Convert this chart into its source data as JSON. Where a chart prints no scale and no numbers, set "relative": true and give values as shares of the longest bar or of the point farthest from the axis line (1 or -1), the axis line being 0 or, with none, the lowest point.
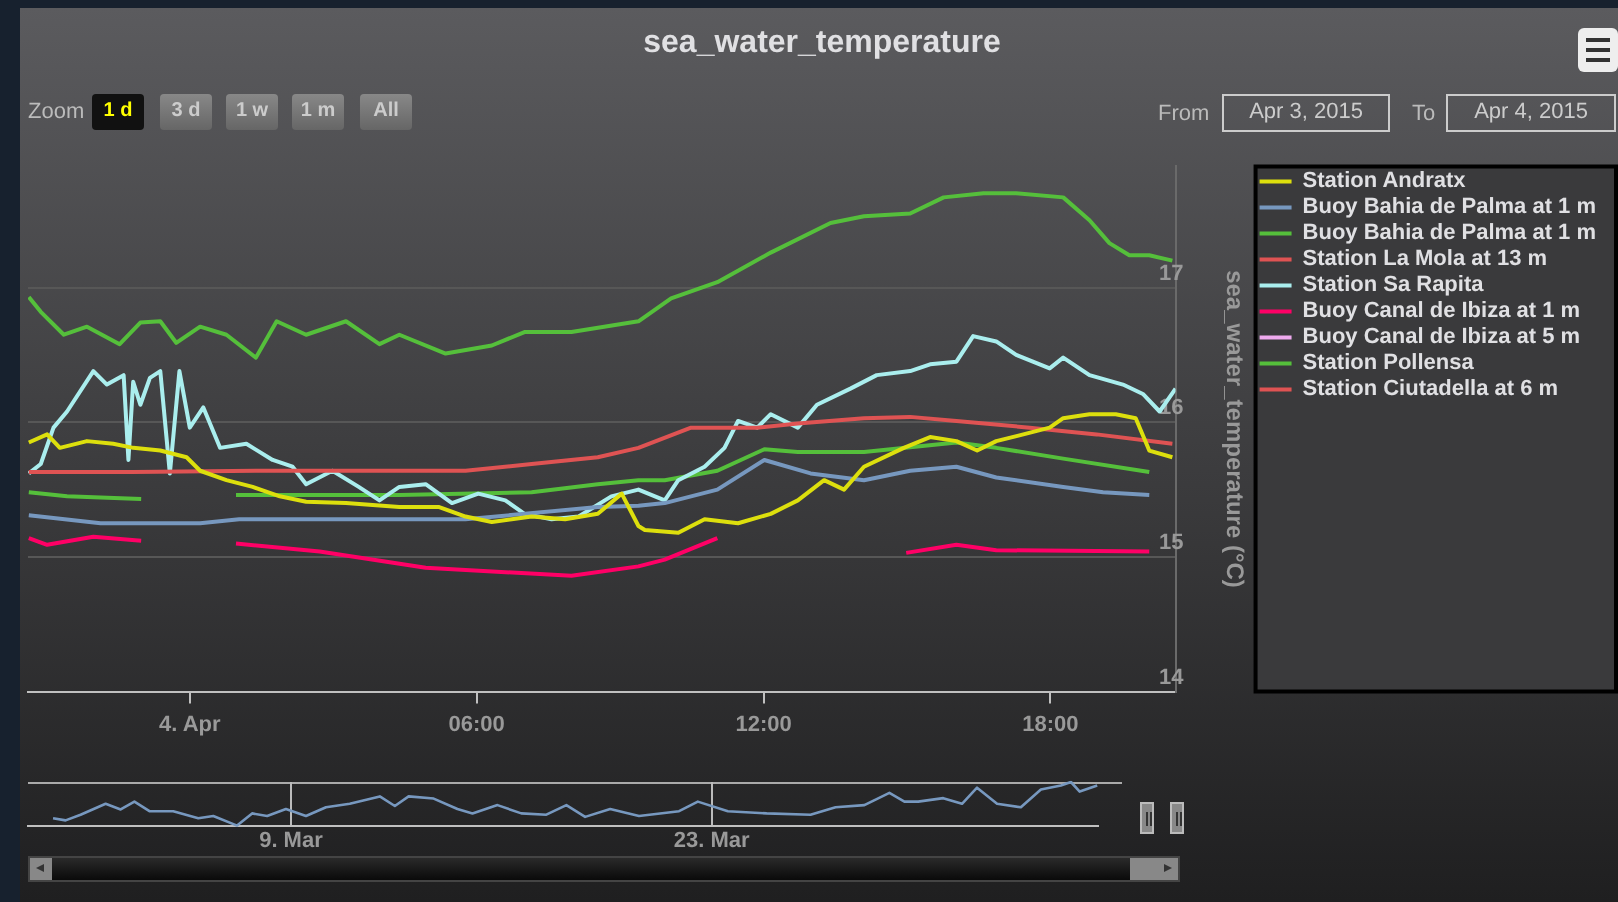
{
  "chart_data": [
    {
      "type": "line",
      "title": "sea_water_temperature",
      "ylabel": "sea_water_temperature (°C)",
      "annotations": [
        "Zoom",
        "1 d",
        "3 d",
        "1 w",
        "1 m",
        "All",
        "From",
        "Apr 3, 2015",
        "To",
        "Apr 4, 2015"
      ],
      "xlim": [
        "2015-04-03T20:37",
        "2015-04-04T20:37"
      ],
      "xticks": [
        {
          "value": "2015-04-04",
          "label": "4. Apr"
        },
        {
          "value": "2015-04-04T06:00",
          "label": "06:00"
        },
        {
          "value": "2015-04-04T12:00",
          "label": "12:00"
        },
        {
          "value": "2015-04-04T18:00",
          "label": "18:00"
        }
      ],
      "ylim": [
        14,
        17.9
      ],
      "yticks": [
        14,
        15,
        16,
        17
      ],
      "grid": "y",
      "legend": "top right",
      "series": [
        {
          "name": "Station Andratx",
          "color": "#dddf0d",
          "x": [
            "2015-04-03T20:38",
            "2015-04-03T21:01",
            "2015-04-03T21:17",
            "2015-04-03T21:51",
            "2015-04-03T22:24",
            "2015-04-03T22:49",
            "2015-04-03T23:23",
            "2015-04-03T23:56",
            "2015-04-04T00:13",
            "2015-04-04T00:46",
            "2015-04-04T01:19",
            "2015-04-04T01:53",
            "2015-04-04T02:26",
            "2015-04-04T03:16",
            "2015-04-04T04:23",
            "2015-04-04T05:13",
            "2015-04-04T05:46",
            "2015-04-04T06:19",
            "2015-04-04T06:44",
            "2015-04-04T07:09",
            "2015-04-04T07:51",
            "2015-04-04T08:32",
            "2015-04-04T09:02",
            "2015-04-04T09:23",
            "2015-04-04T09:31",
            "2015-04-04T10:13",
            "2015-04-04T10:46",
            "2015-04-04T11:28",
            "2015-04-04T12:09",
            "2015-04-04T12:43",
            "2015-04-04T13:16",
            "2015-04-04T13:41",
            "2015-04-04T14:06",
            "2015-04-04T14:56",
            "2015-04-04T15:29",
            "2015-04-04T16:02",
            "2015-04-04T16:28",
            "2015-04-04T16:52",
            "2015-04-04T17:26",
            "2015-04-04T17:59",
            "2015-04-04T18:16",
            "2015-04-04T18:49",
            "2015-04-04T19:22",
            "2015-04-04T19:47",
            "2015-04-04T20:04",
            "2015-04-04T20:33"
          ],
          "values": [
            15.85,
            15.91,
            15.81,
            15.86,
            15.84,
            15.81,
            15.79,
            15.74,
            15.64,
            15.57,
            15.52,
            15.45,
            15.41,
            15.4,
            15.37,
            15.37,
            15.3,
            15.26,
            15.28,
            15.3,
            15.28,
            15.32,
            15.47,
            15.23,
            15.2,
            15.18,
            15.28,
            15.25,
            15.32,
            15.42,
            15.57,
            15.5,
            15.67,
            15.81,
            15.89,
            15.86,
            15.79,
            15.86,
            15.91,
            15.96,
            16.03,
            16.06,
            16.06,
            16.03,
            15.79,
            15.74
          ]
        },
        {
          "name": "Buoy Bahia de Palma at 1 m",
          "color": "#7798bf",
          "x": [
            "2015-04-03T20:38",
            "2015-04-03T22:08",
            "2015-04-04T00:13",
            "2015-04-04T01:02",
            "2015-04-04T05:46",
            "2015-04-04T08:32",
            "2015-04-04T09:23",
            "2015-04-04T09:56",
            "2015-04-04T11:02",
            "2015-04-04T12:01",
            "2015-04-04T12:59",
            "2015-04-04T14:06",
            "2015-04-04T15:04",
            "2015-04-04T16:02",
            "2015-04-04T16:52",
            "2015-04-04T18:16",
            "2015-04-04T19:06",
            "2015-04-04T20:04"
          ],
          "values": [
            15.31,
            15.25,
            15.25,
            15.28,
            15.28,
            15.37,
            15.38,
            15.4,
            15.5,
            15.72,
            15.62,
            15.57,
            15.64,
            15.67,
            15.59,
            15.52,
            15.48,
            15.46
          ]
        },
        {
          "name": "Buoy Bahia de Palma at 1 m",
          "color": "#55bf3b",
          "x": [
            "2015-04-03T20:38",
            "2015-04-03T20:53",
            "2015-04-03T21:22",
            "2015-04-03T21:51",
            "2015-04-03T22:32",
            "2015-04-03T22:58",
            "2015-04-03T23:23",
            "2015-04-03T23:43",
            "2015-04-04T00:13",
            "2015-04-04T00:46",
            "2015-04-04T01:23",
            "2015-04-04T01:49",
            "2015-04-04T02:26",
            "2015-04-04T03:16",
            "2015-04-04T03:58",
            "2015-04-04T04:23",
            "2015-04-04T05:21",
            "2015-04-04T06:19",
            "2015-04-04T07:00",
            "2015-04-04T07:59",
            "2015-04-04T09:23",
            "2015-04-04T10:04",
            "2015-04-04T11:02",
            "2015-04-04T12:09",
            "2015-04-04T13:24",
            "2015-04-04T14:06",
            "2015-04-04T15:04",
            "2015-04-04T15:46",
            "2015-04-04T16:36",
            "2015-04-04T17:17",
            "2015-04-04T18:16",
            "2015-04-04T18:49",
            "2015-04-04T19:14",
            "2015-04-04T19:39",
            "2015-04-04T20:04",
            "2015-04-04T20:33"
          ],
          "values": [
            16.93,
            16.82,
            16.65,
            16.71,
            16.58,
            16.74,
            16.75,
            16.59,
            16.71,
            16.65,
            16.48,
            16.75,
            16.65,
            16.75,
            16.58,
            16.65,
            16.51,
            16.57,
            16.67,
            16.67,
            16.75,
            16.92,
            17.04,
            17.26,
            17.48,
            17.53,
            17.55,
            17.67,
            17.7,
            17.7,
            17.67,
            17.5,
            17.33,
            17.24,
            17.24,
            17.2
          ]
        },
        {
          "name": "Station La Mola at 13 m",
          "color": "#df5353",
          "x": [
            "2015-04-03T20:38",
            "2015-04-03T22:49",
            "2015-04-04T01:36",
            "2015-04-04T05:46",
            "2015-04-04T07:09",
            "2015-04-04T08:32",
            "2015-04-04T09:23",
            "2015-04-04T10:29",
            "2015-04-04T11:52",
            "2015-04-04T12:43",
            "2015-04-04T14:06",
            "2015-04-04T15:04",
            "2015-04-04T16:02",
            "2015-04-04T17:34",
            "2015-04-04T18:58",
            "2015-04-04T20:33"
          ],
          "values": [
            15.63,
            15.63,
            15.64,
            15.64,
            15.69,
            15.74,
            15.81,
            15.96,
            15.96,
            15.99,
            16.03,
            16.04,
            16.01,
            15.96,
            15.91,
            15.84
          ]
        },
        {
          "name": "Station Sa Rapita",
          "color": "#aaeeee",
          "x": [
            "2015-04-03T20:38",
            "2015-04-03T20:53",
            "2015-04-03T21:09",
            "2015-04-03T21:26",
            "2015-04-03T21:59",
            "2015-04-03T22:16",
            "2015-04-03T22:37",
            "2015-04-03T22:43",
            "2015-04-03T22:49",
            "2015-04-03T22:58",
            "2015-04-03T23:10",
            "2015-04-03T23:23",
            "2015-04-03T23:35",
            "2015-04-03T23:47",
            "2015-04-04T00:00",
            "2015-04-04T00:17",
            "2015-04-04T00:38",
            "2015-04-04T01:11",
            "2015-04-04T01:44",
            "2015-04-04T02:09",
            "2015-04-04T02:26",
            "2015-04-04T02:59",
            "2015-04-04T03:32",
            "2015-04-04T03:58",
            "2015-04-04T04:23",
            "2015-04-04T04:56",
            "2015-04-04T05:29",
            "2015-04-04T06:02",
            "2015-04-04T06:36",
            "2015-04-04T07:00",
            "2015-04-04T07:34",
            "2015-04-04T08:08",
            "2015-04-04T08:49",
            "2015-04-04T09:23",
            "2015-04-04T09:56",
            "2015-04-04T10:13",
            "2015-04-04T10:46",
            "2015-04-04T11:11",
            "2015-04-04T11:28",
            "2015-04-04T11:52",
            "2015-04-04T12:09",
            "2015-04-04T12:43",
            "2015-04-04T13:07",
            "2015-04-04T13:49",
            "2015-04-04T14:22",
            "2015-04-04T15:04",
            "2015-04-04T15:29",
            "2015-04-04T16:02",
            "2015-04-04T16:23",
            "2015-04-04T16:52",
            "2015-04-04T17:17",
            "2015-04-04T17:59",
            "2015-04-04T18:16",
            "2015-04-04T18:49",
            "2015-04-04T19:31",
            "2015-04-04T19:56",
            "2015-04-04T20:17",
            "2015-04-04T20:37"
          ],
          "values": [
            15.62,
            15.69,
            15.96,
            16.08,
            16.38,
            16.28,
            16.35,
            15.72,
            16.3,
            16.13,
            16.33,
            16.38,
            15.62,
            16.38,
            15.96,
            16.11,
            15.81,
            15.84,
            15.72,
            15.67,
            15.54,
            15.64,
            15.52,
            15.42,
            15.52,
            15.54,
            15.4,
            15.47,
            15.42,
            15.32,
            15.28,
            15.3,
            15.45,
            15.5,
            15.42,
            15.57,
            15.67,
            15.81,
            16.01,
            15.96,
            16.06,
            15.96,
            16.13,
            16.25,
            16.35,
            16.38,
            16.43,
            16.45,
            16.64,
            16.6,
            16.5,
            16.4,
            16.48,
            16.35,
            16.28,
            16.21,
            16.08,
            16.25
          ]
        },
        {
          "name": "Buoy Canal de Ibiza at 1 m",
          "color": "#ff0066",
          "x": [
            "2015-04-03T20:38",
            "2015-04-03T21:01",
            "2015-04-03T21:59",
            "2015-04-03T22:59",
            "2015-04-03T23:30",
            "2015-04-04T00:58",
            "2015-04-04T02:43",
            "2015-04-04T04:56",
            "2015-04-04T07:59",
            "2015-04-04T09:23",
            "2015-04-04T09:56",
            "2015-04-04T11:02",
            "2015-04-04T13:00",
            "2015-04-04T14:59",
            "2015-04-04T16:02",
            "2015-04-04T16:52",
            "2015-04-04T20:04"
          ],
          "values": [
            15.14,
            15.09,
            15.15,
            15.12,
            null,
            15.1,
            15.04,
            14.92,
            14.86,
            14.93,
            14.98,
            15.14,
            null,
            15.03,
            15.09,
            15.05,
            15.04
          ]
        },
        {
          "name": "Buoy Canal de Ibiza at 5 m",
          "color": "#eeaaee"
        },
        {
          "name": "Station Pollensa",
          "color": "#55bf3b",
          "x": [
            "2015-04-03T20:38",
            "2015-04-03T21:26",
            "2015-04-03T22:59",
            "2015-04-03T23:30",
            "2015-04-04T00:58",
            "2015-04-04T04:23",
            "2015-04-04T07:09",
            "2015-04-04T08:32",
            "2015-04-04T09:23",
            "2015-04-04T09:56",
            "2015-04-04T11:02",
            "2015-04-04T12:01",
            "2015-04-04T12:43",
            "2015-04-04T14:06",
            "2015-04-04T16:02",
            "2015-04-04T16:52",
            "2015-04-04T18:16",
            "2015-04-04T20:04"
          ],
          "values": [
            15.48,
            15.45,
            15.43,
            null,
            15.46,
            15.46,
            15.48,
            15.54,
            15.57,
            15.57,
            15.64,
            15.8,
            15.78,
            15.78,
            15.85,
            15.81,
            15.73,
            15.63
          ]
        },
        {
          "name": "Station Ciutadella at 6 m",
          "color": "#df5353"
        }
      ]
    },
    {
      "type": "line",
      "relative": true,
      "tick_labels": "x",
      "grid": "x",
      "xlim": [
        "2015-02-28T06:00",
        "2015-04-04T20:37"
      ],
      "xticks": [
        {
          "value": "2015-03-09",
          "label": "9. Mar"
        },
        {
          "value": "2015-03-23",
          "label": "23. Mar"
        }
      ],
      "x": [
        "2015-03-01T02:00",
        "2015-03-01T12:00",
        "2015-03-02T00:00",
        "2015-03-02T20:00",
        "2015-03-03T08:00",
        "2015-03-03T19:00",
        "2015-03-04T07:00",
        "2015-03-05T02:00",
        "2015-03-05T22:00",
        "2015-03-06T10:00",
        "2015-03-07T05:00",
        "2015-03-07T17:00",
        "2015-03-08T05:00",
        "2015-03-08T20:00",
        "2015-03-09T12:00",
        "2015-03-10T04:00",
        "2015-03-10T23:00",
        "2015-03-11T23:00",
        "2015-03-12T11:00",
        "2015-03-12T22:00",
        "2015-03-13T18:00",
        "2015-03-14T13:00",
        "2015-03-15T01:00",
        "2015-03-15T21:00",
        "2015-03-16T16:00",
        "2015-03-17T12:00",
        "2015-03-18T04:00",
        "2015-03-18T19:00",
        "2015-03-19T15:00",
        "2015-03-20T14:00",
        "2015-03-21T22:00",
        "2015-03-22T13:00",
        "2015-03-23T13:00",
        "2015-03-24T20:00",
        "2015-03-26T07:00",
        "2015-03-27T03:00",
        "2015-03-28T02:00",
        "2015-03-28T22:00",
        "2015-03-29T10:00",
        "2015-03-29T21:00",
        "2015-03-30T17:00",
        "2015-03-31T08:00",
        "2015-03-31T20:00",
        "2015-04-01T12:00",
        "2015-04-02T07:00",
        "2015-04-02T23:00",
        "2015-04-03T15:00",
        "2015-04-03T23:00",
        "2015-04-04T06:00",
        "2015-04-04T20:00"
      ],
      "series": [
        {
          "color": "#7798bf",
          "values": [
            0.17,
            0.12,
            0.25,
            0.5,
            0.37,
            0.55,
            0.33,
            0.33,
            0.17,
            0.22,
            0,
            0.28,
            0.22,
            0.38,
            0.22,
            0.42,
            0.5,
            0.67,
            0.45,
            0.67,
            0.62,
            0.38,
            0.28,
            0.47,
            0.28,
            0.25,
            0.47,
            0.2,
            0.38,
            0.22,
            0.33,
            0.55,
            0.33,
            0.28,
            0.25,
            0.42,
            0.47,
            0.75,
            0.55,
            0.55,
            0.63,
            0.5,
            0.87,
            0.5,
            0.42,
            0.83,
            0.92,
            1,
            0.78,
            0.92
          ]
        }
      ]
    }
  ]
}
